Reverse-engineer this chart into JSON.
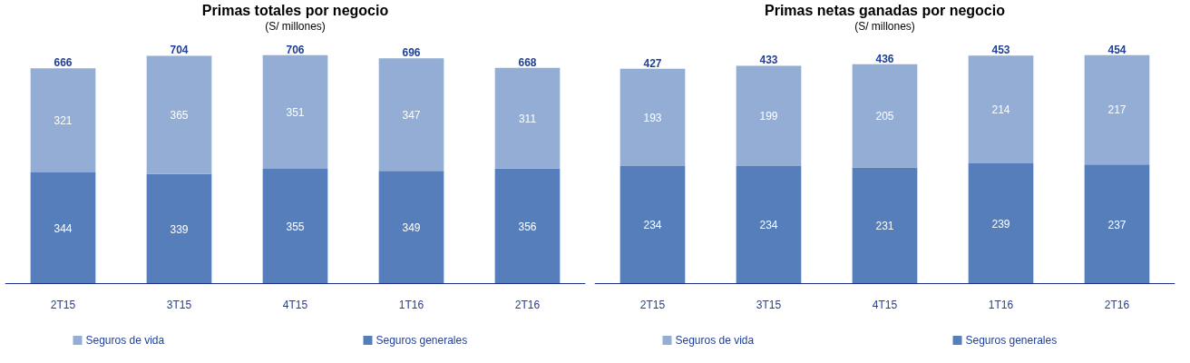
{
  "chart_data": [
    {
      "type": "bar",
      "title": "Primas totales por negocio",
      "subtitle": "(S/ millones)",
      "categories": [
        "2T15",
        "3T15",
        "4T15",
        "1T16",
        "2T16"
      ],
      "stacked": true,
      "data_labels": true,
      "legend": "bottom",
      "grid": false,
      "tick_labels": "x",
      "series": [
        {
          "name": "Seguros generales",
          "color": "#567ebb",
          "values": [
            344,
            339,
            355,
            349,
            356
          ]
        },
        {
          "name": "Seguros de vida",
          "color": "#93add4",
          "values": [
            321,
            365,
            351,
            347,
            311
          ]
        }
      ],
      "totals": [
        "666",
        "704",
        "706",
        "696",
        "668"
      ]
    },
    {
      "type": "bar",
      "title": "Primas netas ganadas por negocio",
      "subtitle": "(S/ millones)",
      "categories": [
        "2T15",
        "3T15",
        "4T15",
        "1T16",
        "2T16"
      ],
      "stacked": true,
      "data_labels": true,
      "legend": "bottom",
      "grid": false,
      "tick_labels": "x",
      "series": [
        {
          "name": "Seguros generales",
          "color": "#567ebb",
          "values": [
            234,
            234,
            231,
            239,
            237
          ]
        },
        {
          "name": "Seguros de vida",
          "color": "#93add4",
          "values": [
            193,
            199,
            205,
            214,
            217
          ]
        }
      ],
      "totals": [
        "427",
        "433",
        "436",
        "453",
        "454"
      ]
    }
  ]
}
